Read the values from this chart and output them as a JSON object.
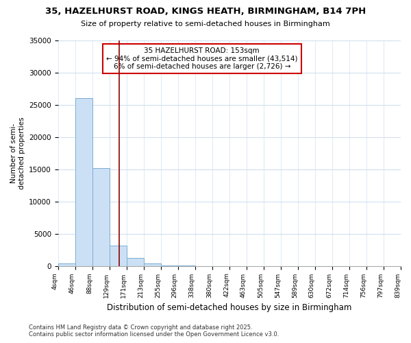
{
  "title_line1": "35, HAZELHURST ROAD, KINGS HEATH, BIRMINGHAM, B14 7PH",
  "title_line2": "Size of property relative to semi-detached houses in Birmingham",
  "xlabel": "Distribution of semi-detached houses by size in Birmingham",
  "ylabel": "Number of semi-\ndetached properties",
  "annotation_title": "35 HAZELHURST ROAD: 153sqm",
  "annotation_line2": "← 94% of semi-detached houses are smaller (43,514)",
  "annotation_line3": "6% of semi-detached houses are larger (2,726) →",
  "property_size": 153,
  "footer_line1": "Contains HM Land Registry data © Crown copyright and database right 2025.",
  "footer_line2": "Contains public sector information licensed under the Open Government Licence v3.0.",
  "bin_edges": [
    4,
    46,
    88,
    129,
    171,
    213,
    255,
    296,
    338,
    380,
    422,
    463,
    505,
    547,
    589,
    630,
    672,
    714,
    756,
    797,
    839
  ],
  "bar_heights": [
    400,
    26100,
    15200,
    3200,
    1200,
    400,
    100,
    10,
    5,
    2,
    1,
    0,
    0,
    0,
    0,
    0,
    0,
    0,
    0,
    0
  ],
  "bar_color": "#cce0f5",
  "bar_edge_color": "#7aadd4",
  "property_line_color": "#8b0000",
  "annotation_box_color": "#cc0000",
  "background_color": "#ffffff",
  "grid_color": "#d0e0f0",
  "ylim": [
    0,
    35000
  ],
  "yticks": [
    0,
    5000,
    10000,
    15000,
    20000,
    25000,
    30000,
    35000
  ]
}
